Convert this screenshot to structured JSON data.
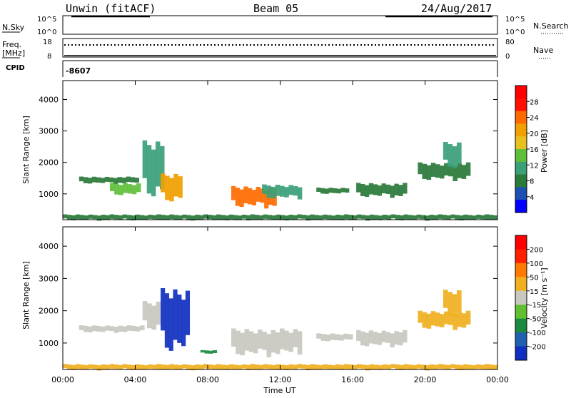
{
  "header": {
    "station": "Unwin (fitACF)",
    "beam": "Beam 05",
    "date": "24/Aug/2017"
  },
  "noise_panel": {
    "left_label": "N.Sky",
    "right_label": "N.Search",
    "ticks": [
      "10^5",
      "10^0"
    ],
    "right_ticks": [
      "10^5",
      "10^0"
    ]
  },
  "freq_panel": {
    "left_label_1": "Freq.",
    "left_label_2": "[MHz]",
    "left_ticks": [
      "18",
      "8"
    ],
    "right_label": "Nave",
    "right_ticks": [
      "80",
      "0"
    ]
  },
  "cpid": {
    "label": "CPID",
    "value": "-8607"
  },
  "power_panel": {
    "ylabel": "Slant Range [km]",
    "yticks": [
      "4000",
      "3000",
      "2000",
      "1000"
    ],
    "colorbar_label": "Power [dB]",
    "colorbar_ticks": [
      "28",
      "24",
      "20",
      "16",
      "12",
      "8",
      "4"
    ],
    "colors": [
      "#0000ff",
      "#1d4fb2",
      "#2a7a3a",
      "#3aa078",
      "#5fbf3a",
      "#e8c020",
      "#f0a000",
      "#ff6a00",
      "#ff1000",
      "#ff0000"
    ]
  },
  "velocity_panel": {
    "ylabel": "Slant Range [km]",
    "yticks": [
      "4000",
      "3000",
      "2000",
      "1000"
    ],
    "colorbar_label": "Velocity [m s⁻¹]",
    "colorbar_ticks": [
      "200",
      "100",
      "50",
      "15",
      "-15",
      "-50",
      "-100",
      "-200"
    ],
    "colors": [
      "#1030c0",
      "#2060b0",
      "#1a8a40",
      "#60c030",
      "#c8c8c0",
      "#f0b020",
      "#ff7a00",
      "#ff2000",
      "#ff0000"
    ]
  },
  "x_axis": {
    "label": "Time UT",
    "ticks": [
      "00:00",
      "04:00",
      "08:00",
      "12:00",
      "16:00",
      "20:00",
      "00:00"
    ]
  },
  "chart_data": [
    {
      "type": "heatmap",
      "title": "Power",
      "x_range_hours": [
        0,
        24
      ],
      "y_range_km": [
        180,
        4600
      ],
      "value_range": [
        0,
        30
      ],
      "units": "dB",
      "regions": [
        {
          "t0": 0.9,
          "t1": 4.2,
          "r0": 1350,
          "r1": 1550,
          "value": 8
        },
        {
          "t0": 2.6,
          "t1": 4.3,
          "r0": 1000,
          "r1": 1350,
          "value": 14
        },
        {
          "t0": 4.4,
          "t1": 5.6,
          "r0": 1100,
          "r1": 2700,
          "value": 10
        },
        {
          "t0": 5.4,
          "t1": 6.6,
          "r0": 850,
          "r1": 1650,
          "value": 18
        },
        {
          "t0": 9.3,
          "t1": 11.8,
          "r0": 650,
          "r1": 1250,
          "value": 22
        },
        {
          "t0": 11.0,
          "t1": 13.2,
          "r0": 900,
          "r1": 1300,
          "value": 10
        },
        {
          "t0": 14.0,
          "t1": 15.8,
          "r0": 1020,
          "r1": 1200,
          "value": 6
        },
        {
          "t0": 16.2,
          "t1": 19.0,
          "r0": 950,
          "r1": 1350,
          "value": 7
        },
        {
          "t0": 19.6,
          "t1": 22.5,
          "r0": 1500,
          "r1": 2000,
          "value": 7
        },
        {
          "t0": 21.0,
          "t1": 22.0,
          "r0": 1900,
          "r1": 2650,
          "value": 9
        },
        {
          "t0": 0.0,
          "t1": 24.0,
          "r0": 180,
          "r1": 350,
          "value": 6
        }
      ]
    },
    {
      "type": "heatmap",
      "title": "Velocity",
      "x_range_hours": [
        0,
        24
      ],
      "y_range_km": [
        180,
        4600
      ],
      "value_range": [
        -250,
        250
      ],
      "units": "m s-1",
      "regions": [
        {
          "t0": 0.9,
          "t1": 4.5,
          "r0": 1350,
          "r1": 1550,
          "value": 0
        },
        {
          "t0": 4.4,
          "t1": 5.4,
          "r0": 1500,
          "r1": 2300,
          "value": 0
        },
        {
          "t0": 5.4,
          "t1": 7.0,
          "r0": 950,
          "r1": 2700,
          "value": -230
        },
        {
          "t0": 7.6,
          "t1": 8.5,
          "r0": 680,
          "r1": 780,
          "value": -120
        },
        {
          "t0": 9.3,
          "t1": 13.2,
          "r0": 700,
          "r1": 1450,
          "value": 0
        },
        {
          "t0": 14.0,
          "t1": 16.0,
          "r0": 1080,
          "r1": 1300,
          "value": 0
        },
        {
          "t0": 16.2,
          "t1": 19.0,
          "r0": 950,
          "r1": 1400,
          "value": 0
        },
        {
          "t0": 19.6,
          "t1": 22.5,
          "r0": 1500,
          "r1": 2000,
          "value": 30
        },
        {
          "t0": 21.0,
          "t1": 22.0,
          "r0": 1900,
          "r1": 2650,
          "value": 50
        },
        {
          "t0": 0.0,
          "t1": 24.0,
          "r0": 180,
          "r1": 350,
          "value": 40
        }
      ]
    }
  ]
}
